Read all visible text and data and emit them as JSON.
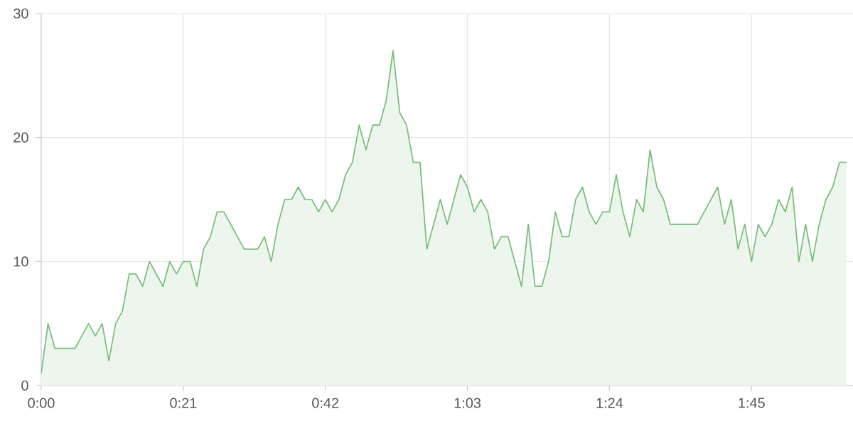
{
  "chart_data": {
    "type": "area",
    "color": "#78bb78",
    "grid": true,
    "xlim": [
      0,
      120
    ],
    "xticks": [
      {
        "value": 0,
        "label": "0:00"
      },
      {
        "value": 21,
        "label": "0:21"
      },
      {
        "value": 42,
        "label": "0:42"
      },
      {
        "value": 63,
        "label": "1:03"
      },
      {
        "value": 84,
        "label": "1:24"
      },
      {
        "value": 105,
        "label": "1:45"
      }
    ],
    "ylim": [
      0,
      30
    ],
    "yticks": [
      0,
      10,
      20,
      30
    ],
    "x": [
      0,
      1,
      2,
      3,
      4,
      5,
      6,
      7,
      8,
      9,
      10,
      11,
      12,
      13,
      14,
      15,
      16,
      17,
      18,
      19,
      20,
      21,
      22,
      23,
      24,
      25,
      26,
      27,
      28,
      29,
      30,
      31,
      32,
      33,
      34,
      35,
      36,
      37,
      38,
      39,
      40,
      41,
      42,
      43,
      44,
      45,
      46,
      47,
      48,
      49,
      50,
      51,
      52,
      53,
      54,
      55,
      56,
      57,
      58,
      59,
      60,
      61,
      62,
      63,
      64,
      65,
      66,
      67,
      68,
      69,
      70,
      71,
      72,
      73,
      74,
      75,
      76,
      77,
      78,
      79,
      80,
      81,
      82,
      83,
      84,
      85,
      86,
      87,
      88,
      89,
      90,
      91,
      92,
      93,
      94,
      95,
      96,
      97,
      98,
      99,
      100,
      101,
      102,
      103,
      104,
      105,
      106,
      107,
      108,
      109,
      110,
      111,
      112,
      113,
      114,
      115,
      116,
      117,
      118,
      119
    ],
    "values": [
      1,
      5,
      3,
      3,
      3,
      3,
      4,
      5,
      4,
      5,
      2,
      5,
      6,
      9,
      9,
      8,
      10,
      9,
      8,
      10,
      9,
      10,
      10,
      8,
      11,
      12,
      14,
      14,
      13,
      12,
      11,
      11,
      11,
      12,
      10,
      13,
      15,
      15,
      16,
      15,
      15,
      14,
      15,
      14,
      15,
      17,
      18,
      21,
      19,
      21,
      21,
      23,
      27,
      22,
      21,
      18,
      18,
      11,
      13,
      15,
      13,
      15,
      17,
      16,
      14,
      15,
      14,
      11,
      12,
      12,
      10,
      8,
      13,
      8,
      8,
      10,
      14,
      12,
      12,
      15,
      16,
      14,
      13,
      14,
      14,
      17,
      14,
      12,
      15,
      14,
      19,
      16,
      15,
      13,
      13,
      13,
      13,
      13,
      14,
      15,
      16,
      13,
      15,
      11,
      13,
      10,
      13,
      12,
      13,
      15,
      14,
      16,
      10,
      13,
      10,
      13,
      15,
      16,
      18,
      18
    ]
  }
}
